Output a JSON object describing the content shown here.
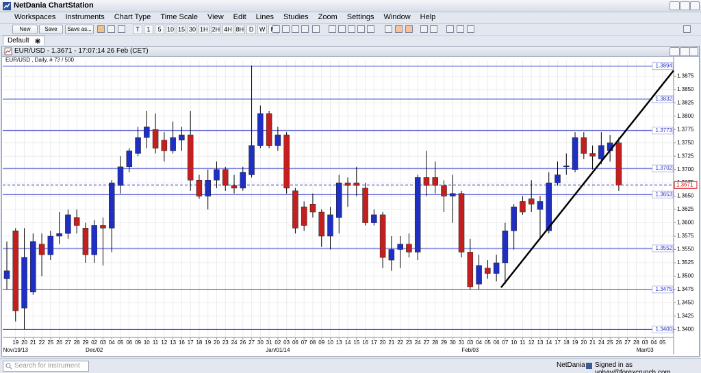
{
  "window": {
    "title": "NetDania ChartStation"
  },
  "menu": [
    "Workspaces",
    "Instruments",
    "Chart Type",
    "Time Scale",
    "View",
    "Edit",
    "Lines",
    "Studies",
    "Zoom",
    "Settings",
    "Window",
    "Help"
  ],
  "toolbar": {
    "buttons": [
      "New",
      "Save",
      "Save as..."
    ],
    "intervals": [
      "T",
      "1",
      "5",
      "10",
      "15",
      "30",
      "1H",
      "2H",
      "4H",
      "8H",
      "D",
      "W",
      "M"
    ]
  },
  "tab": {
    "label": "Default"
  },
  "status": {
    "search": "Search for instrument",
    "brand": "NetDania",
    "signed_in": "Signed in as yohay@forexcrunch.com"
  },
  "chart_data": {
    "type": "candlestick",
    "title": "EUR/USD - 1.3671 - 17:07:14 26 Feb (CET)",
    "subtitle": "EUR/USD , Daily, # 73 / 500",
    "categories": [
      null,
      "19",
      "20",
      "21",
      "22",
      "25",
      "26",
      "27",
      "28",
      "29",
      "02",
      "03",
      "04",
      "05",
      "06",
      "09",
      "10",
      "11",
      "12",
      "13",
      "16",
      "17",
      "18",
      "19",
      "20",
      "23",
      "24",
      "26",
      "27",
      "30",
      "31",
      "02",
      "03",
      "06",
      "07",
      "08",
      "09",
      "10",
      "13",
      "14",
      "15",
      "16",
      "17",
      "20",
      "21",
      "22",
      "23",
      "24",
      "27",
      "28",
      "29",
      "30",
      "31",
      "03",
      "04",
      "05",
      "06",
      "07",
      "10",
      "11",
      "12",
      "13",
      "14",
      "17",
      "18",
      "19",
      "20",
      "21",
      "24",
      "25",
      "26",
      "27",
      "28",
      "03",
      "04",
      "05"
    ],
    "period_labels": [
      null,
      "Nov/19/13",
      null,
      null,
      null,
      null,
      null,
      null,
      null,
      null,
      "Dec/02",
      null,
      null,
      null,
      null,
      null,
      null,
      null,
      null,
      null,
      null,
      null,
      null,
      null,
      null,
      null,
      null,
      null,
      null,
      null,
      null,
      "Jan/01/14",
      null,
      null,
      null,
      null,
      null,
      null,
      null,
      null,
      null,
      null,
      null,
      null,
      null,
      null,
      null,
      null,
      null,
      null,
      null,
      null,
      null,
      "Feb/03",
      null,
      null,
      null,
      null,
      null,
      null,
      null,
      null,
      null,
      null,
      null,
      null,
      null,
      null,
      null,
      null,
      null,
      null,
      null,
      "Mar/03",
      null,
      null
    ],
    "open": [
      1.3495,
      1.3585,
      1.344,
      1.347,
      1.356,
      1.354,
      1.3575,
      1.358,
      1.361,
      1.359,
      1.354,
      1.3595,
      1.359,
      1.367,
      1.3705,
      1.373,
      1.376,
      1.3775,
      1.3755,
      1.3735,
      1.3755,
      1.3765,
      1.368,
      1.365,
      1.368,
      1.37,
      1.367,
      1.3665,
      1.369,
      1.3745,
      1.3805,
      1.3745,
      1.3765,
      1.366,
      1.363,
      1.3635,
      1.362,
      1.3575,
      1.361,
      1.3675,
      1.3675,
      1.3665,
      1.36,
      1.3615,
      1.353,
      1.355,
      1.356,
      1.3545,
      1.3685,
      1.3685,
      1.367,
      1.365,
      1.3655,
      1.3545,
      1.3485,
      1.3515,
      1.3505,
      1.3525,
      1.3585,
      1.364,
      1.3645,
      1.3625,
      1.3585,
      1.3675,
      1.3705,
      1.37,
      1.376,
      1.373,
      1.372,
      1.3735,
      1.375,
      null,
      null,
      null,
      null,
      null
    ],
    "high": [
      1.3565,
      1.359,
      1.359,
      1.358,
      1.358,
      1.3585,
      1.362,
      1.3625,
      1.3625,
      1.36,
      1.3605,
      1.361,
      1.368,
      1.3725,
      1.374,
      1.378,
      1.381,
      1.3805,
      1.377,
      1.379,
      1.378,
      1.381,
      1.369,
      1.37,
      1.3715,
      1.3705,
      1.369,
      1.3705,
      1.3895,
      1.382,
      1.381,
      1.378,
      1.377,
      1.3665,
      1.364,
      1.3655,
      1.3625,
      1.363,
      1.369,
      1.3685,
      1.3705,
      1.3675,
      1.3625,
      1.362,
      1.3575,
      1.3575,
      1.358,
      1.369,
      1.3735,
      1.3715,
      1.368,
      1.369,
      1.366,
      1.357,
      1.354,
      1.353,
      1.354,
      1.36,
      1.3635,
      1.365,
      1.368,
      1.365,
      1.3695,
      1.3715,
      1.373,
      1.377,
      1.377,
      1.3745,
      1.377,
      1.3765,
      1.376,
      null,
      null,
      null,
      null,
      null
    ],
    "low": [
      1.3475,
      1.3415,
      1.34,
      1.3465,
      1.35,
      1.353,
      1.356,
      1.357,
      1.358,
      1.3525,
      1.3525,
      1.352,
      1.3545,
      1.3655,
      1.3695,
      1.3725,
      1.374,
      1.373,
      1.3715,
      1.373,
      1.3735,
      1.366,
      1.3645,
      1.3625,
      1.3665,
      1.366,
      1.3655,
      1.366,
      1.3685,
      1.374,
      1.374,
      1.3735,
      1.3655,
      1.358,
      1.3585,
      1.361,
      1.3555,
      1.355,
      1.358,
      1.363,
      1.365,
      1.3595,
      1.3595,
      1.3515,
      1.351,
      1.3515,
      1.3535,
      1.353,
      1.365,
      1.3655,
      1.362,
      1.36,
      1.3535,
      1.3475,
      1.3475,
      1.3495,
      1.349,
      1.3485,
      1.355,
      1.3615,
      1.362,
      1.357,
      1.358,
      1.367,
      1.369,
      1.3695,
      1.372,
      1.37,
      1.371,
      1.3715,
      1.366,
      null,
      null,
      null,
      null,
      null
    ],
    "close": [
      1.351,
      1.3435,
      1.3535,
      1.3565,
      1.354,
      1.3575,
      1.358,
      1.3615,
      1.3595,
      1.354,
      1.3595,
      1.359,
      1.3675,
      1.3705,
      1.3735,
      1.376,
      1.378,
      1.374,
      1.3735,
      1.376,
      1.3765,
      1.368,
      1.365,
      1.368,
      1.37,
      1.367,
      1.3665,
      1.3695,
      1.3745,
      1.3805,
      1.3745,
      1.3765,
      1.3665,
      1.359,
      1.3595,
      1.362,
      1.3575,
      1.3615,
      1.3675,
      1.367,
      1.367,
      1.36,
      1.3615,
      1.3535,
      1.355,
      1.356,
      1.3545,
      1.3685,
      1.367,
      1.367,
      1.365,
      1.3655,
      1.3545,
      1.348,
      1.352,
      1.3505,
      1.3525,
      1.3585,
      1.363,
      1.362,
      1.3635,
      1.364,
      1.3675,
      1.369,
      1.3707,
      1.376,
      1.373,
      1.3725,
      1.3745,
      1.375,
      1.3671,
      null,
      null,
      null,
      null,
      null
    ],
    "up_color": "#1f2fc4",
    "down_color": "#c41f1f",
    "ylim": [
      1.3385,
      1.3905
    ],
    "yticks": [
      {
        "value": 1.34,
        "label": "1.3400"
      },
      1.3425,
      {
        "value": 1.345,
        "label": "1.3450"
      },
      1.3475,
      {
        "value": 1.35,
        "label": "1.3500"
      },
      1.3525,
      {
        "value": 1.355,
        "label": "1.3550"
      },
      1.3575,
      {
        "value": 1.36,
        "label": "1.3600"
      },
      1.3625,
      {
        "value": 1.365,
        "label": "1.3650"
      },
      1.3675,
      {
        "value": 1.37,
        "label": "1.3700"
      },
      1.3725,
      {
        "value": 1.375,
        "label": "1.3750"
      },
      1.3775,
      {
        "value": 1.38,
        "label": "1.3800"
      },
      1.3825,
      {
        "value": 1.385,
        "label": "1.3850"
      },
      1.3875
    ],
    "grid": true,
    "levels": [
      1.3894,
      1.3832,
      1.3773,
      1.3702,
      1.3653,
      1.3552,
      1.3475,
      {
        "value": 1.34,
        "label": "1.3400"
      }
    ],
    "level_color": "#2c35c8",
    "last_price": 1.3671,
    "last_price_color": "#d01010"
  }
}
